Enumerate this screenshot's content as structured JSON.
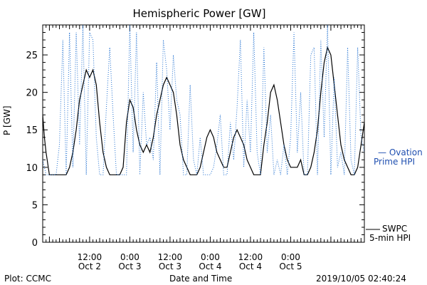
{
  "chart_data": {
    "type": "line",
    "title": "Hemispheric Power [GW]",
    "ylabel": "P [GW]",
    "xlabel": "Date and Time",
    "ylim": [
      0,
      29
    ],
    "xlim": [
      0,
      96
    ],
    "y_ticks": [
      0,
      5,
      10,
      15,
      20,
      25
    ],
    "x_ticks": [
      {
        "x": 14,
        "label1": "12:00",
        "label2": "Oct 2"
      },
      {
        "x": 26,
        "label1": "0:00",
        "label2": "Oct 3"
      },
      {
        "x": 38,
        "label1": "12:00",
        "label2": "Oct 3"
      },
      {
        "x": 50,
        "label1": "0:00",
        "label2": "Oct 4"
      },
      {
        "x": 62,
        "label1": "12:00",
        "label2": "Oct 4"
      },
      {
        "x": 74,
        "label1": "0:00",
        "label2": "Oct 5"
      }
    ],
    "legend": {
      "ovation_line1": "— Ovation",
      "ovation_line2": "Prime HPI",
      "swpc_line1": "SWPC",
      "swpc_line2": "5-min HPI"
    },
    "series": [
      {
        "name": "SWPC 5-min HPI",
        "color": "#000000",
        "style": "solid",
        "x": [
          0,
          0.5,
          1,
          2,
          3,
          4,
          5,
          6,
          7,
          8,
          9,
          10,
          11,
          12,
          13,
          14,
          15,
          16,
          17,
          18,
          19,
          20,
          21,
          22,
          23,
          24,
          25,
          26,
          27,
          28,
          29,
          30,
          31,
          32,
          33,
          34,
          35,
          36,
          37,
          38,
          39,
          40,
          41,
          42,
          43,
          44,
          45,
          46,
          47,
          48,
          49,
          50,
          51,
          52,
          53,
          54,
          55,
          56,
          57,
          58,
          59,
          60,
          61,
          62,
          63,
          64,
          65,
          66,
          67,
          68,
          69,
          70,
          71,
          72,
          73,
          74,
          75,
          76,
          77,
          78,
          79,
          80,
          81,
          82,
          83,
          84,
          85,
          86,
          87,
          88,
          89,
          90,
          91,
          92,
          93,
          94,
          95,
          96
        ],
        "values": [
          17,
          14,
          12,
          9,
          9,
          9,
          9,
          9,
          9,
          10,
          12,
          15,
          19,
          21,
          23,
          22,
          23,
          21,
          16,
          12,
          10,
          9,
          9,
          9,
          9,
          10,
          16,
          19,
          18,
          15,
          13,
          12,
          13,
          12,
          14,
          17,
          19,
          21,
          22,
          21,
          20,
          17,
          13,
          11,
          10,
          9,
          9,
          9,
          10,
          12,
          14,
          15,
          14,
          12,
          11,
          10,
          10,
          12,
          14,
          15,
          14,
          13,
          11,
          10,
          9,
          9,
          9,
          13,
          16,
          20,
          21,
          19,
          16,
          13,
          11,
          10,
          10,
          10,
          11,
          9,
          9,
          10,
          12,
          15,
          20,
          24,
          26,
          25,
          21,
          17,
          13,
          11,
          10,
          9,
          9,
          10,
          13,
          16
        ]
      },
      {
        "name": "Ovation Prime HPI",
        "color": "#1f6fd0",
        "style": "dotted",
        "x": [
          0,
          1,
          2,
          3,
          4,
          5,
          6,
          7,
          8,
          9,
          10,
          11,
          12,
          13,
          14,
          15,
          16,
          17,
          18,
          19,
          20,
          21,
          22,
          23,
          24,
          25,
          26,
          27,
          28,
          29,
          30,
          31,
          32,
          33,
          34,
          35,
          36,
          37,
          38,
          39,
          40,
          41,
          42,
          43,
          44,
          45,
          46,
          47,
          48,
          49,
          50,
          51,
          52,
          53,
          54,
          55,
          56,
          57,
          58,
          59,
          60,
          61,
          62,
          63,
          64,
          65,
          66,
          67,
          68,
          69,
          70,
          71,
          72,
          73,
          74,
          75,
          76,
          77,
          78,
          79,
          80,
          81,
          82,
          83,
          84,
          85,
          86,
          87,
          88,
          89,
          90,
          91,
          92,
          93,
          94,
          95,
          96
        ],
        "values": [
          11,
          9,
          9,
          9,
          9,
          13,
          27,
          9,
          28,
          10,
          28,
          13,
          29,
          9,
          28,
          27,
          14,
          9,
          9,
          18,
          26,
          17,
          9,
          9,
          9,
          9,
          29,
          12,
          28,
          9,
          20,
          13,
          14,
          11,
          24,
          9,
          27,
          23,
          15,
          25,
          19,
          17,
          9,
          9,
          21,
          11,
          9,
          14,
          9,
          9,
          9,
          10,
          13,
          17,
          9,
          9,
          16,
          11,
          18,
          27,
          10,
          19,
          12,
          28,
          12,
          9,
          26,
          12,
          17,
          9,
          11,
          9,
          13,
          9,
          14,
          28,
          12,
          20,
          9,
          9,
          25,
          26,
          9,
          27,
          14,
          29,
          9,
          22,
          10,
          12,
          9,
          26,
          11,
          9,
          26,
          14,
          12
        ]
      }
    ]
  },
  "footer": {
    "plot_by": "Plot: CCMC",
    "timestamp": "2019/10/05 02:40:24"
  }
}
